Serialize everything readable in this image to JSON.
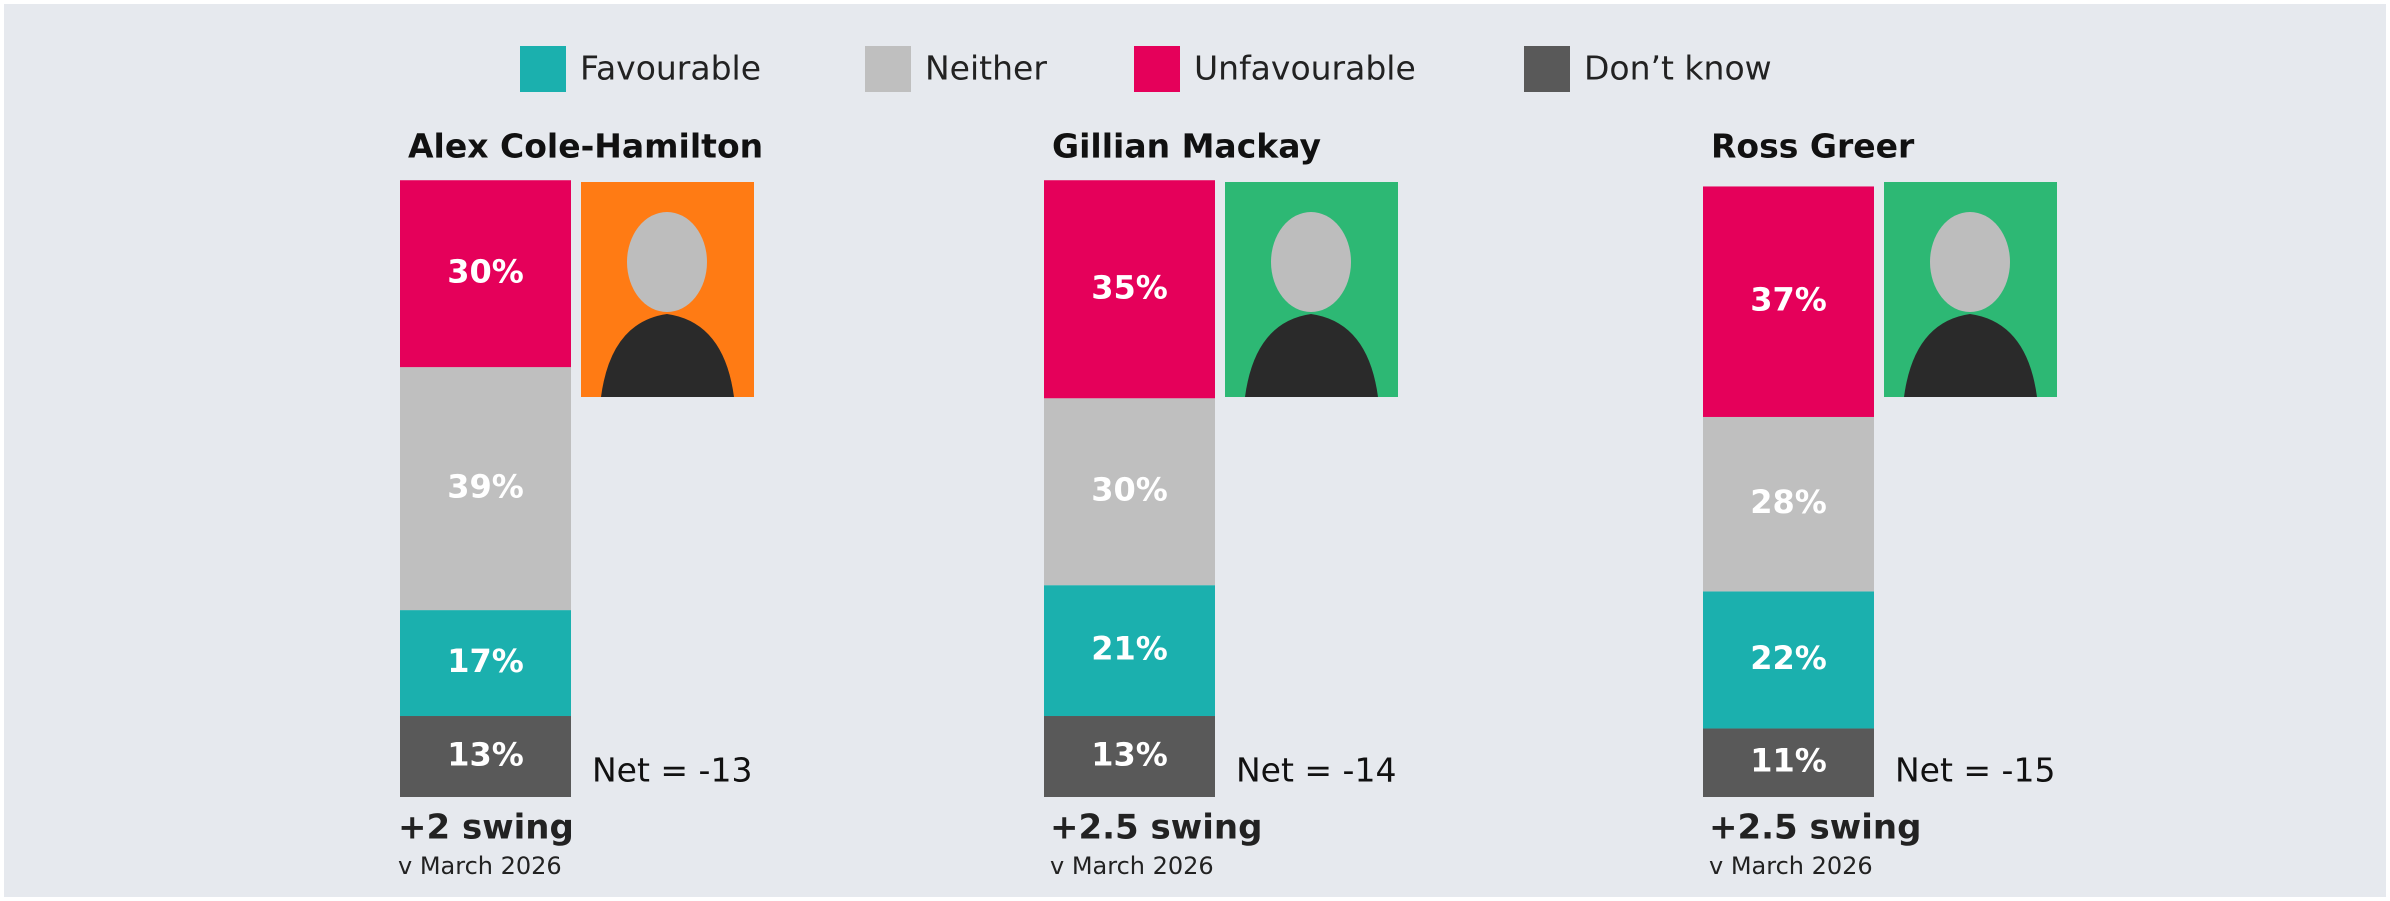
{
  "chart_data": {
    "type": "stacked-bar",
    "legend": "top",
    "categories": [
      "Alex Cole-Hamilton",
      "Gillian Mackay",
      "Ross Greer"
    ],
    "series": [
      {
        "name": "Favourable",
        "color": "#1bb0ae",
        "values": [
          17,
          21,
          22
        ],
        "value_labels": [
          "17%",
          "21%",
          "22%"
        ]
      },
      {
        "name": "Neither",
        "color": "#bfbfbf",
        "values": [
          39,
          30,
          28
        ],
        "value_labels": [
          "39%",
          "30%",
          "28%"
        ]
      },
      {
        "name": "Unfavourable",
        "color": "#e5005a",
        "values": [
          30,
          35,
          37
        ],
        "value_labels": [
          "30%",
          "35%",
          "37%"
        ]
      },
      {
        "name": "Don’t know",
        "color": "#595959",
        "values": [
          13,
          13,
          11
        ],
        "value_labels": [
          "13%",
          "13%",
          "11%"
        ]
      }
    ],
    "net_labels": [
      "Net = -13",
      "Net = -14",
      "Net = -15"
    ],
    "swing_labels": [
      "+2 swing",
      "+2.5 swing",
      "+2.5 swing"
    ],
    "swing_notes": [
      "v March 2026",
      "v March 2026",
      "v March 2026"
    ]
  }
}
